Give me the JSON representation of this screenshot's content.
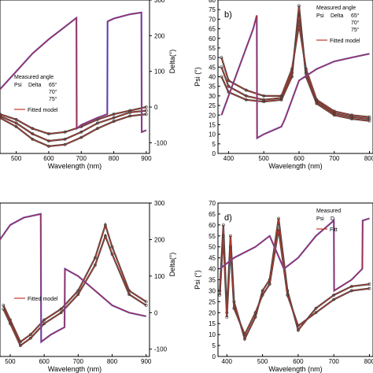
{
  "chart_data": [
    {
      "panel": "a",
      "type": "line",
      "panel_letter": "",
      "xlabel": "Wavelength (nm)",
      "ylabel_left": "",
      "ylabel_right": "Delta(°)",
      "xlim": [
        450,
        910
      ],
      "ylim_right": [
        -130,
        300
      ],
      "x_ticks": [
        "500",
        "600",
        "700",
        "800",
        "900"
      ],
      "x_tick_values": [
        500,
        600,
        700,
        800,
        900
      ],
      "y_left_ticks": [],
      "y_left_tick_values": [],
      "y_right_ticks": [
        "-100",
        "0",
        "100",
        "200",
        "300"
      ],
      "y_right_tick_values": [
        -100,
        0,
        100,
        200,
        300
      ],
      "legend": {
        "title": "Measured angle",
        "psi": "Psi",
        "delta": "Delta",
        "angles": [
          "65°",
          "70°",
          "75°"
        ],
        "fit": "Fitted model"
      },
      "psi_series": [
        {
          "x": [
            450,
            500,
            550,
            600,
            650,
            700,
            750,
            800,
            850,
            900
          ],
          "y": [
            -20,
            -35,
            -60,
            -75,
            -70,
            -55,
            -35,
            -20,
            -10,
            0
          ]
        },
        {
          "x": [
            450,
            500,
            550,
            600,
            650,
            700,
            750,
            800,
            850,
            900
          ],
          "y": [
            -25,
            -45,
            -75,
            -95,
            -90,
            -70,
            -45,
            -30,
            -15,
            -10
          ]
        },
        {
          "x": [
            450,
            500,
            550,
            600,
            650,
            700,
            750,
            800,
            850,
            900
          ],
          "y": [
            -30,
            -55,
            -90,
            -110,
            -105,
            -85,
            -60,
            -40,
            -25,
            -20
          ]
        }
      ],
      "delta_series": [
        {
          "x": [
            450,
            500,
            550,
            600,
            650,
            685,
            686,
            700,
            750,
            780,
            781,
            800,
            850,
            885,
            886,
            900
          ],
          "y": [
            50,
            100,
            150,
            190,
            225,
            250,
            -60,
            -50,
            -30,
            -20,
            240,
            248,
            260,
            265,
            -70,
            -65
          ]
        }
      ]
    },
    {
      "panel": "b",
      "type": "line",
      "panel_letter": "b)",
      "xlabel": "Wavelength (nm)",
      "ylabel_left": "Psi (°)",
      "ylabel_right": "",
      "xlim": [
        370,
        810
      ],
      "ylim_left": [
        0,
        80
      ],
      "x_ticks": [
        "400",
        "500",
        "600",
        "700",
        "800"
      ],
      "x_tick_values": [
        400,
        500,
        600,
        700,
        800
      ],
      "y_left_ticks": [
        "0",
        "5",
        "10",
        "15",
        "20",
        "25",
        "30",
        "35",
        "40",
        "45",
        "50",
        "55",
        "60",
        "65",
        "70",
        "75",
        "80"
      ],
      "y_left_tick_values": [
        0,
        5,
        10,
        15,
        20,
        25,
        30,
        35,
        40,
        45,
        50,
        55,
        60,
        65,
        70,
        75,
        80
      ],
      "y_right_ticks": [],
      "y_right_tick_values": [],
      "legend": {
        "title": "Measured angle",
        "psi": "Psi",
        "delta": "Delta",
        "angles": [
          "65°",
          "70°",
          "75°"
        ],
        "fit": "Fitted model"
      },
      "psi_series": [
        {
          "x": [
            380,
            400,
            450,
            500,
            550,
            580,
            600,
            620,
            650,
            700,
            750,
            800
          ],
          "y": [
            40,
            32,
            28,
            27,
            28,
            40,
            77,
            40,
            26,
            20,
            18,
            17
          ]
        },
        {
          "x": [
            380,
            400,
            450,
            500,
            550,
            580,
            600,
            620,
            650,
            700,
            750,
            800
          ],
          "y": [
            45,
            35,
            30,
            28,
            29,
            42,
            72,
            42,
            27,
            21,
            19,
            18
          ]
        },
        {
          "x": [
            380,
            400,
            450,
            500,
            550,
            580,
            600,
            620,
            650,
            700,
            750,
            800
          ],
          "y": [
            50,
            38,
            33,
            30,
            30,
            44,
            67,
            44,
            28,
            22,
            20,
            19
          ]
        }
      ],
      "delta_series": [
        {
          "x": [
            380,
            420,
            470,
            480,
            481,
            500,
            550,
            560,
            600,
            650,
            700,
            750,
            800
          ],
          "y": [
            20,
            40,
            65,
            72,
            8,
            10,
            14,
            18,
            38,
            44,
            48,
            50,
            52
          ]
        }
      ]
    },
    {
      "panel": "c",
      "type": "line",
      "panel_letter": "",
      "xlabel": "Wavelength (nm)",
      "ylabel_left": "",
      "ylabel_right": "Delta(°)",
      "xlim": [
        470,
        910
      ],
      "ylim_right": [
        -120,
        300
      ],
      "x_ticks": [
        "500",
        "600",
        "700",
        "800",
        "900"
      ],
      "x_tick_values": [
        500,
        600,
        700,
        800,
        900
      ],
      "y_left_ticks": [],
      "y_left_tick_values": [],
      "y_right_ticks": [
        "-100",
        "0",
        "100",
        "200",
        "300"
      ],
      "y_right_tick_values": [
        -100,
        0,
        100,
        200,
        300
      ],
      "legend": {
        "title": "",
        "psi": "",
        "delta": "",
        "angles": [],
        "fit": "Fitted model"
      },
      "psi_series": [
        {
          "x": [
            480,
            500,
            530,
            560,
            600,
            650,
            700,
            750,
            780,
            800,
            850,
            900
          ],
          "y": [
            20,
            -20,
            -80,
            -60,
            -20,
            10,
            60,
            150,
            240,
            180,
            60,
            30
          ]
        },
        {
          "x": [
            480,
            500,
            530,
            560,
            600,
            650,
            700,
            750,
            780,
            800,
            850,
            900
          ],
          "y": [
            10,
            -30,
            -90,
            -70,
            -30,
            0,
            50,
            130,
            210,
            160,
            50,
            20
          ]
        }
      ],
      "delta_series": [
        {
          "x": [
            470,
            500,
            540,
            590,
            591,
            620,
            660,
            661,
            700,
            750,
            800,
            850,
            900
          ],
          "y": [
            200,
            240,
            260,
            270,
            -80,
            -60,
            -40,
            120,
            100,
            60,
            20,
            0,
            -10
          ]
        }
      ]
    },
    {
      "panel": "d",
      "type": "line",
      "panel_letter": "d)",
      "xlabel": "Wavelength (nm)",
      "ylabel_left": "Psi (°)",
      "ylabel_right": "",
      "xlim": [
        375,
        810
      ],
      "ylim_left": [
        0,
        70
      ],
      "x_ticks": [
        "400",
        "500",
        "600",
        "700",
        "800"
      ],
      "x_tick_values": [
        400,
        500,
        600,
        700,
        800
      ],
      "y_left_ticks": [
        "0",
        "5",
        "10",
        "15",
        "20",
        "25",
        "30",
        "35",
        "40",
        "45",
        "50",
        "55",
        "60",
        "65",
        "70"
      ],
      "y_left_tick_values": [
        0,
        5,
        10,
        15,
        20,
        25,
        30,
        35,
        40,
        45,
        50,
        55,
        60,
        65,
        70
      ],
      "y_right_ticks": [],
      "y_right_tick_values": [],
      "legend": {
        "title": "Measured",
        "psi": "Psi",
        "delta": "D",
        "angles": [],
        "fit": "Fitt"
      },
      "psi_series": [
        {
          "x": [
            380,
            390,
            400,
            410,
            420,
            450,
            480,
            500,
            520,
            545,
            570,
            600,
            650,
            700,
            750,
            800
          ],
          "y": [
            30,
            60,
            20,
            55,
            25,
            8,
            18,
            30,
            35,
            63,
            30,
            12,
            22,
            28,
            32,
            33
          ]
        },
        {
          "x": [
            380,
            390,
            400,
            410,
            420,
            450,
            480,
            500,
            520,
            545,
            570,
            600,
            650,
            700,
            750,
            800
          ],
          "y": [
            28,
            55,
            18,
            50,
            22,
            10,
            20,
            28,
            33,
            58,
            28,
            14,
            20,
            26,
            30,
            31
          ]
        }
      ],
      "delta_series": [
        {
          "x": [
            380,
            420,
            480,
            520,
            560,
            600,
            650,
            700,
            701,
            750,
            780,
            781,
            800
          ],
          "y": [
            40,
            45,
            50,
            55,
            40,
            45,
            55,
            62,
            30,
            35,
            40,
            62,
            63
          ]
        }
      ]
    }
  ]
}
